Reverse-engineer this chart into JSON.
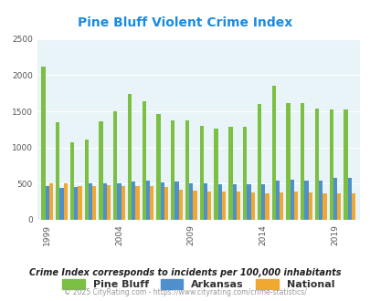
{
  "title": "Pine Bluff Violent Crime Index",
  "years": [
    1999,
    2000,
    2001,
    2002,
    2003,
    2004,
    2005,
    2006,
    2007,
    2008,
    2009,
    2010,
    2011,
    2012,
    2013,
    2014,
    2015,
    2016,
    2017,
    2018,
    2019,
    2020
  ],
  "pine_bluff": [
    2120,
    1350,
    1070,
    1110,
    1360,
    1500,
    1740,
    1640,
    1460,
    1380,
    1380,
    1300,
    1260,
    1290,
    1290,
    1600,
    1850,
    1610,
    1610,
    1540,
    1530,
    1530
  ],
  "arkansas": [
    470,
    440,
    450,
    500,
    500,
    510,
    535,
    540,
    520,
    525,
    510,
    500,
    490,
    490,
    490,
    495,
    540,
    555,
    545,
    545,
    575,
    580
  ],
  "national": [
    500,
    500,
    470,
    465,
    475,
    465,
    470,
    470,
    450,
    420,
    400,
    390,
    390,
    385,
    380,
    365,
    375,
    390,
    380,
    370,
    370,
    365
  ],
  "pine_bluff_color": "#7bc043",
  "arkansas_color": "#4f8fcc",
  "national_color": "#f0a830",
  "plot_bg": "#e8f4f8",
  "ylim": [
    0,
    2500
  ],
  "yticks": [
    0,
    500,
    1000,
    1500,
    2000,
    2500
  ],
  "xtick_years": [
    1999,
    2004,
    2009,
    2014,
    2019
  ],
  "legend_labels": [
    "Pine Bluff",
    "Arkansas",
    "National"
  ],
  "subtitle": "Crime Index corresponds to incidents per 100,000 inhabitants",
  "footer": "© 2025 CityRating.com - https://www.cityrating.com/crime-statistics/",
  "title_color": "#1b8be0",
  "subtitle_color": "#222222",
  "footer_color": "#999999",
  "bar_width": 0.27
}
